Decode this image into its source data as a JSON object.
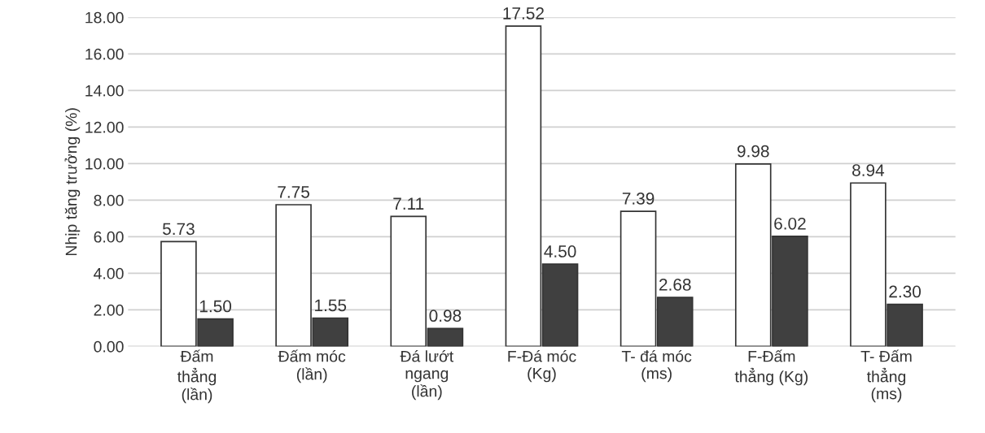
{
  "chart_data": {
    "type": "bar",
    "ylabel": "Nhịp tăng trưởng (%)",
    "categories": [
      "Đấm\nthẳng\n(lần)",
      "Đấm móc\n(lần)",
      "Đá lướt\nngang\n(lần)",
      "F-Đá móc\n(Kg)",
      "T- đá móc\n(ms)",
      "F-Đấm\nthẳng (Kg)",
      "T- Đấm\nthẳng\n(ms)"
    ],
    "series": [
      {
        "color": "#ffffff",
        "values": [
          5.73,
          7.75,
          7.11,
          17.52,
          7.39,
          9.98,
          8.94
        ],
        "value_labels": [
          "5.73",
          "7.75",
          "7.11",
          "17.52",
          "7.39",
          "9.98",
          "8.94"
        ]
      },
      {
        "color": "#404040",
        "values": [
          1.5,
          1.55,
          0.98,
          4.5,
          2.68,
          6.02,
          2.3
        ],
        "value_labels": [
          "1.50",
          "1.55",
          "0.98",
          "4.50",
          "2.68",
          "6.02",
          "2.30"
        ]
      }
    ],
    "ylim": [
      0,
      18
    ],
    "yticks": [
      {
        "value": 0,
        "label": "0.00"
      },
      {
        "value": 2,
        "label": "2.00"
      },
      {
        "value": 4,
        "label": "4.00"
      },
      {
        "value": 6,
        "label": "6.00"
      },
      {
        "value": 8,
        "label": "8.00"
      },
      {
        "value": 10,
        "label": "10.00"
      },
      {
        "value": 12,
        "label": "12.00"
      },
      {
        "value": 14,
        "label": "14.00"
      },
      {
        "value": 16,
        "label": "16.00"
      },
      {
        "value": 18,
        "label": "18.00"
      }
    ],
    "grid": "y",
    "legend": false
  }
}
